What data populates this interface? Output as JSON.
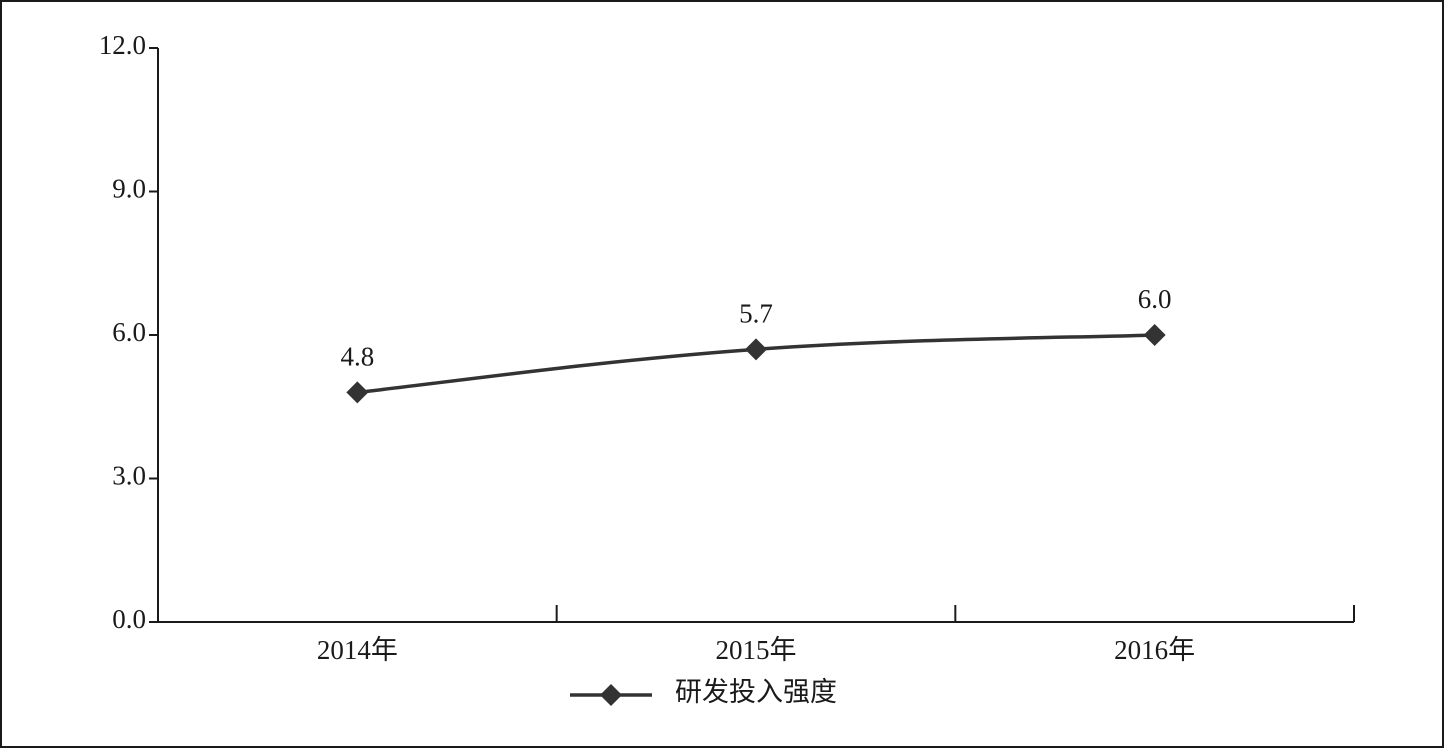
{
  "chart_data": {
    "type": "line",
    "categories": [
      "2014年",
      "2015年",
      "2016年"
    ],
    "series": [
      {
        "name": "研发投入强度",
        "color": "#333333",
        "values": [
          4.8,
          5.7,
          6.0
        ],
        "value_labels": [
          "4.8",
          "5.7",
          "6.0"
        ]
      }
    ],
    "ylim": [
      0,
      12
    ],
    "yticks": [
      {
        "value": 0,
        "label": "0.0"
      },
      {
        "value": 3,
        "label": "3.0"
      },
      {
        "value": 6,
        "label": "6.0"
      },
      {
        "value": 9,
        "label": "9.0"
      },
      {
        "value": 12,
        "label": "12.0"
      }
    ],
    "smooth": true,
    "legend": "bottom"
  }
}
